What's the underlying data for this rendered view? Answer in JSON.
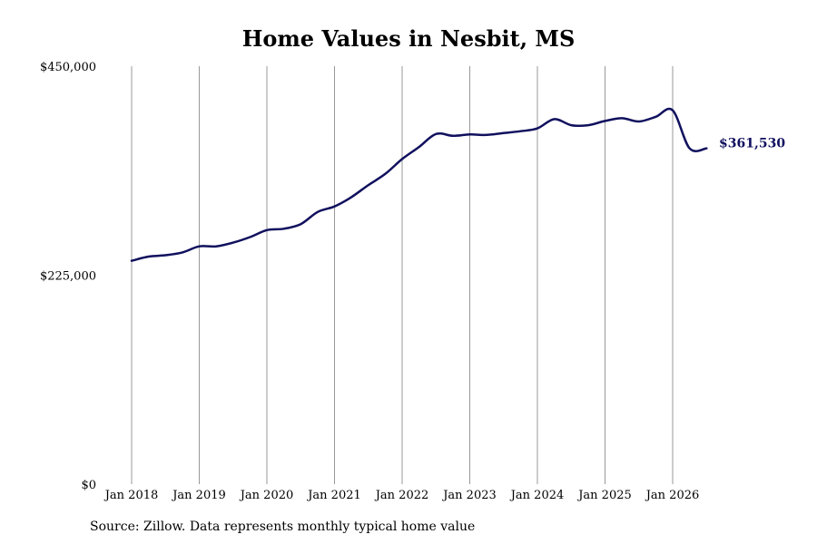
{
  "chart_data": {
    "type": "line",
    "title": "Home Values in Nesbit, MS",
    "xlabel": "",
    "ylabel": "",
    "ylim": [
      0,
      450000
    ],
    "y_ticks": [
      {
        "value": 0,
        "label": "$0"
      },
      {
        "value": 225000,
        "label": "$225,000"
      },
      {
        "value": 450000,
        "label": "$450,000"
      }
    ],
    "x_ticks": [
      "Jan 2018",
      "Jan 2019",
      "Jan 2020",
      "Jan 2021",
      "Jan 2022",
      "Jan 2023",
      "Jan 2024",
      "Jan 2025",
      "Jan 2026"
    ],
    "grid": {
      "vertical": true,
      "horizontal": false
    },
    "colors": {
      "line": "#10105e",
      "grid": "#999999"
    },
    "end_label": "$361,530",
    "series": [
      {
        "x": [
          "2018-01",
          "2018-04",
          "2018-07",
          "2018-10",
          "2019-01",
          "2019-04",
          "2019-07",
          "2019-10",
          "2020-01",
          "2020-04",
          "2020-07",
          "2020-10",
          "2021-01",
          "2021-04",
          "2021-07",
          "2021-10",
          "2022-01",
          "2022-04",
          "2022-07",
          "2022-10",
          "2023-01",
          "2023-04",
          "2023-07",
          "2023-10",
          "2024-01",
          "2024-04",
          "2024-07",
          "2024-10",
          "2025-01",
          "2025-04",
          "2025-07",
          "2025-10",
          "2026-01",
          "2026-04",
          "2026-07"
        ],
        "values": [
          240500,
          245000,
          246500,
          249500,
          256000,
          256000,
          260000,
          266000,
          273500,
          275000,
          280000,
          293000,
          299000,
          309000,
          322000,
          334000,
          350000,
          363000,
          377000,
          375000,
          376500,
          376000,
          378000,
          380000,
          383000,
          393000,
          386500,
          386500,
          391000,
          394000,
          390500,
          395500,
          402500,
          361530,
          361530
        ]
      }
    ]
  },
  "source": "Source: Zillow. Data represents monthly typical home value"
}
